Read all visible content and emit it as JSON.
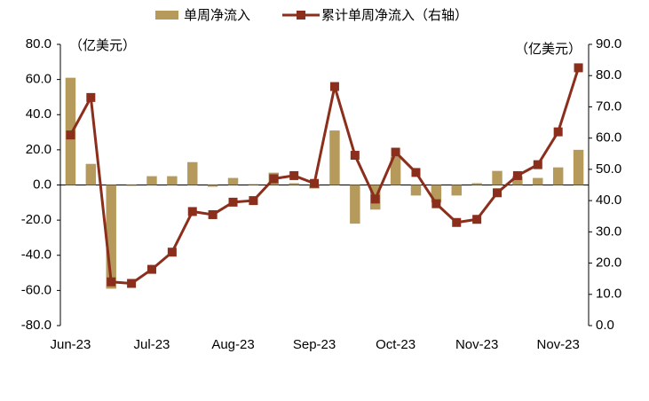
{
  "chart_data": {
    "type": "bar_line",
    "legend": "top",
    "categories": [
      "Jun-23",
      null,
      null,
      null,
      "Jul-23",
      null,
      null,
      null,
      "Aug-23",
      null,
      null,
      null,
      "Sep-23",
      null,
      null,
      null,
      "Oct-23",
      null,
      null,
      null,
      "Nov-23",
      null,
      null,
      null,
      "Nov-23",
      null
    ],
    "series": [
      {
        "name": "单周净流入",
        "type": "bar",
        "color": "#b59a5b",
        "values": [
          61,
          12,
          -59,
          -0.5,
          5,
          5,
          13,
          -1,
          4,
          0.5,
          7,
          1,
          -2,
          31,
          -22,
          -14,
          16,
          -6,
          -10,
          -6,
          1,
          8,
          5,
          4,
          10,
          20
        ]
      },
      {
        "name": "累计单周净流入（右轴）",
        "type": "line",
        "axis": "y2",
        "color": "#8b2e1c",
        "values": [
          61,
          73,
          14,
          13.5,
          18,
          23.5,
          36.5,
          35.5,
          39.5,
          40,
          47,
          48,
          45.5,
          76.5,
          54.5,
          40.5,
          55.5,
          49,
          39,
          33,
          34,
          42.5,
          48,
          51.5,
          62,
          82.5
        ]
      }
    ],
    "annotations": [
      "（亿美元）",
      "（亿美元）"
    ],
    "ylim": [
      -80,
      80
    ],
    "yticks": [
      {
        "value": -80,
        "label": "-80.0"
      },
      {
        "value": -60,
        "label": "-60.0"
      },
      {
        "value": -40,
        "label": "-40.0"
      },
      {
        "value": -20,
        "label": "-20.0"
      },
      {
        "value": 0,
        "label": "0.0"
      },
      {
        "value": 20,
        "label": "20.0"
      },
      {
        "value": 40,
        "label": "40.0"
      },
      {
        "value": 60,
        "label": "60.0"
      },
      {
        "value": 80,
        "label": "80.0"
      }
    ],
    "y2lim": [
      0,
      90
    ],
    "y2ticks": [
      {
        "value": 0,
        "label": "0.0"
      },
      {
        "value": 10,
        "label": "10.0"
      },
      {
        "value": 20,
        "label": "20.0"
      },
      {
        "value": 30,
        "label": "30.0"
      },
      {
        "value": 40,
        "label": "40.0"
      },
      {
        "value": 50,
        "label": "50.0"
      },
      {
        "value": 60,
        "label": "60.0"
      },
      {
        "value": 70,
        "label": "70.0"
      },
      {
        "value": 80,
        "label": "80.0"
      },
      {
        "value": 90,
        "label": "90.0"
      }
    ]
  }
}
